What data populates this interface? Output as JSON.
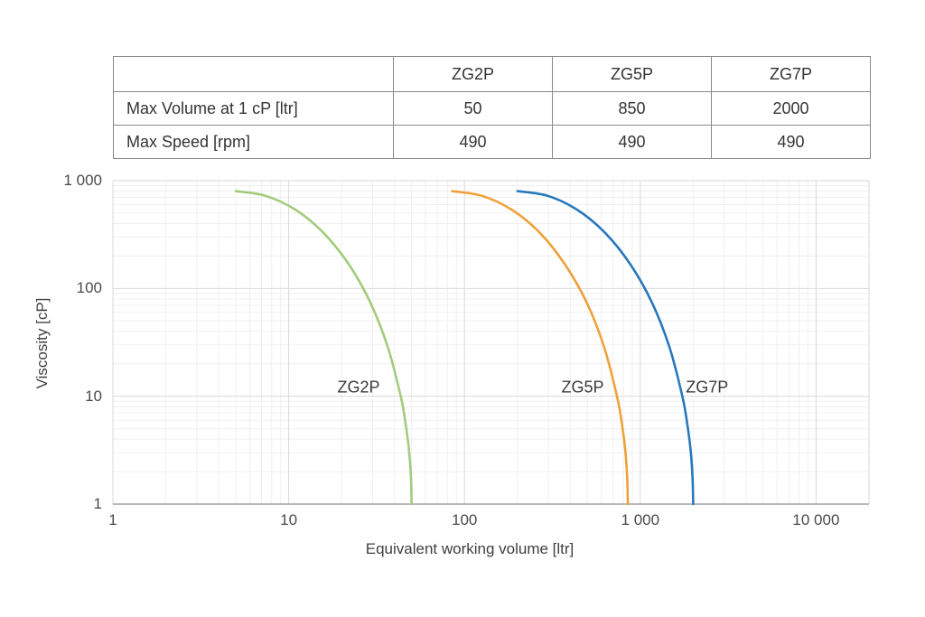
{
  "page": {
    "background": "#ffffff",
    "text_color": "#3b3b3b"
  },
  "table": {
    "headers": [
      "",
      "ZG2P",
      "ZG5P",
      "ZG7P"
    ],
    "rows": [
      {
        "label": "Max Volume at 1 cP [ltr]",
        "values": [
          "50",
          "850",
          "2000"
        ]
      },
      {
        "label": "Max Speed [rpm]",
        "values": [
          "490",
          "490",
          "490"
        ]
      }
    ]
  },
  "chart_data": {
    "type": "line",
    "title": "",
    "xlabel": "Equivalent working volume [ltr]",
    "ylabel": "Viscosity [cP]",
    "x_axis": {
      "scale": "log",
      "lim": [
        1,
        20000
      ],
      "tick_values": [
        1,
        10,
        100,
        1000,
        10000
      ],
      "tick_labels": [
        "1",
        "10",
        "100",
        "1 000",
        "10 000"
      ]
    },
    "y_axis": {
      "scale": "log",
      "lim": [
        1,
        1000
      ],
      "tick_values": [
        1000,
        100,
        10,
        1
      ],
      "tick_labels": [
        "1 000",
        "100",
        "10",
        "1"
      ]
    },
    "grid": {
      "major": true,
      "minor": true,
      "major_color": "#d9d9d9",
      "minor_color": "#f0f0f0",
      "axis_color": "#a3a3a3",
      "border_color": "#d9d9d9"
    },
    "legend": "none",
    "series": [
      {
        "name": "ZG2P",
        "color": "#a2cc7c",
        "max_volume_at_1cP": 50,
        "points": [
          [
            5,
            800
          ],
          [
            7.4,
            723
          ],
          [
            11,
            534
          ],
          [
            15.8,
            327
          ],
          [
            22,
            167
          ],
          [
            29.2,
            73.5
          ],
          [
            36.7,
            28.3
          ],
          [
            43.5,
            9.8
          ],
          [
            46.2,
            5.6
          ],
          [
            48.3,
            3.2
          ],
          [
            49.6,
            1.8
          ],
          [
            50,
            1
          ]
        ]
      },
      {
        "name": "ZG5P",
        "color": "#efa13b",
        "max_volume_at_1cP": 850,
        "points": [
          [
            85,
            800
          ],
          [
            126,
            723
          ],
          [
            187,
            534
          ],
          [
            269,
            327
          ],
          [
            373,
            167
          ],
          [
            497,
            73.5
          ],
          [
            624,
            28.3
          ],
          [
            739,
            9.8
          ],
          [
            786,
            5.6
          ],
          [
            821,
            3.2
          ],
          [
            842,
            1.8
          ],
          [
            850,
            1
          ]
        ]
      },
      {
        "name": "ZG7P",
        "color": "#2878bd",
        "max_volume_at_1cP": 2000,
        "points": [
          [
            200,
            800
          ],
          [
            298,
            723
          ],
          [
            440,
            534
          ],
          [
            632,
            327
          ],
          [
            879,
            167
          ],
          [
            1168,
            73.5
          ],
          [
            1468,
            28.3
          ],
          [
            1740,
            9.8
          ],
          [
            1848,
            5.6
          ],
          [
            1932,
            3.2
          ],
          [
            1982,
            1.8
          ],
          [
            2000,
            1
          ]
        ]
      }
    ],
    "annotations": [
      {
        "text": "ZG2P",
        "x": 25,
        "y": 12
      },
      {
        "text": "ZG5P",
        "x": 470,
        "y": 12
      },
      {
        "text": "ZG7P",
        "x": 2400,
        "y": 12
      }
    ]
  }
}
